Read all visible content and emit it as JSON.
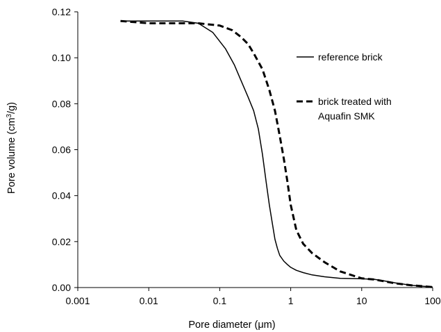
{
  "chart_data": {
    "type": "line",
    "title": "",
    "xlabel": "Pore diameter (μm)",
    "ylabel": "Pore volume (cm³/g)",
    "xscale": "log",
    "xlim": [
      0.001,
      100
    ],
    "ylim": [
      0,
      0.12
    ],
    "grid": false,
    "legend_placement": "right",
    "x_ticks": [
      "0.001",
      "0.01",
      "0.1",
      "1",
      "10",
      "100"
    ],
    "y_ticks": [
      "0.00",
      "0.02",
      "0.04",
      "0.06",
      "0.08",
      "0.10",
      "0.12"
    ],
    "series": [
      {
        "name": "reference brick",
        "style": "solid",
        "color": "#000000",
        "x": [
          0.004,
          0.01,
          0.03,
          0.05,
          0.08,
          0.12,
          0.16,
          0.2,
          0.25,
          0.3,
          0.35,
          0.4,
          0.45,
          0.5,
          0.55,
          0.6,
          0.65,
          0.7,
          0.8,
          0.9,
          1.0,
          1.2,
          1.5,
          2.0,
          3.0,
          5.0,
          10,
          15,
          20,
          30,
          50,
          100
        ],
        "y": [
          0.116,
          0.116,
          0.116,
          0.115,
          0.111,
          0.104,
          0.097,
          0.09,
          0.083,
          0.077,
          0.069,
          0.058,
          0.046,
          0.036,
          0.028,
          0.021,
          0.017,
          0.014,
          0.0115,
          0.01,
          0.0088,
          0.0075,
          0.0065,
          0.0055,
          0.0047,
          0.004,
          0.0038,
          0.0036,
          0.003,
          0.002,
          0.001,
          0.0002
        ]
      },
      {
        "name": "brick treated with Aquafin SMK",
        "style": "dashed",
        "color": "#000000",
        "x": [
          0.004,
          0.01,
          0.05,
          0.1,
          0.15,
          0.2,
          0.25,
          0.3,
          0.4,
          0.5,
          0.6,
          0.7,
          0.8,
          0.9,
          1.0,
          1.2,
          1.5,
          2.0,
          3.0,
          5.0,
          10,
          15,
          20,
          30,
          50,
          100
        ],
        "y": [
          0.116,
          0.115,
          0.115,
          0.114,
          0.112,
          0.109,
          0.106,
          0.102,
          0.095,
          0.086,
          0.077,
          0.066,
          0.056,
          0.046,
          0.036,
          0.025,
          0.019,
          0.015,
          0.011,
          0.007,
          0.004,
          0.0035,
          0.0028,
          0.0018,
          0.001,
          0.0002
        ]
      }
    ]
  }
}
